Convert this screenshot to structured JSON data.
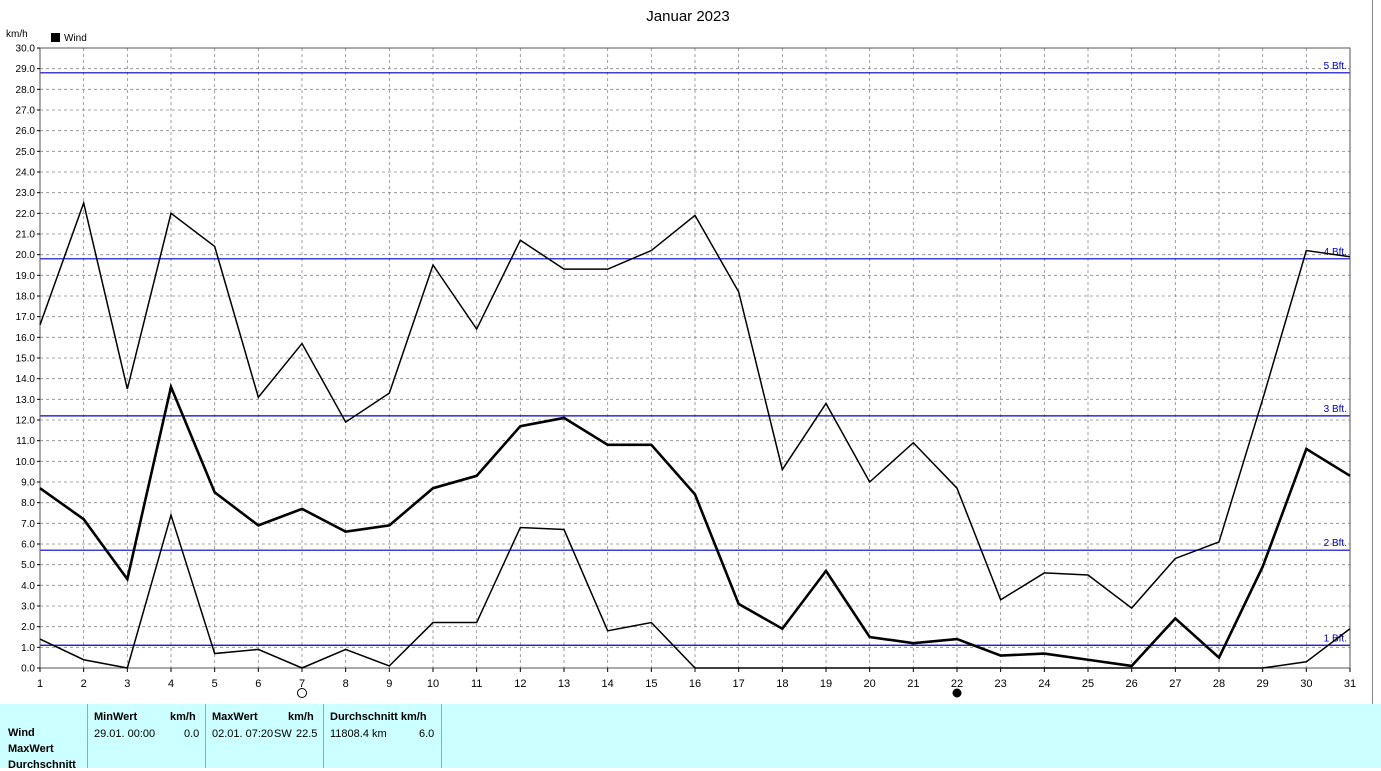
{
  "chart_data": {
    "type": "line",
    "title": "Januar 2023",
    "ylabel": "km/h",
    "xlabel": "",
    "ylim": [
      0,
      30
    ],
    "ytick_step": 1,
    "grid": true,
    "legend": {
      "label": "Wind",
      "color": "#000000",
      "placement": "top-left"
    },
    "x": [
      1,
      2,
      3,
      4,
      5,
      6,
      7,
      8,
      9,
      10,
      11,
      12,
      13,
      14,
      15,
      16,
      17,
      18,
      19,
      20,
      21,
      22,
      23,
      24,
      25,
      26,
      27,
      28,
      29,
      30,
      31
    ],
    "series": [
      {
        "role": "max",
        "values": [
          16.6,
          22.5,
          13.5,
          22.0,
          20.4,
          13.1,
          15.7,
          11.9,
          13.3,
          19.5,
          16.4,
          20.7,
          19.3,
          19.3,
          20.2,
          21.9,
          18.2,
          9.6,
          12.8,
          9.0,
          10.9,
          8.7,
          3.3,
          4.6,
          4.5,
          2.9,
          5.3,
          6.1,
          13.0,
          20.2,
          19.9
        ]
      },
      {
        "role": "avg",
        "values": [
          8.7,
          7.2,
          4.3,
          13.6,
          8.5,
          6.9,
          7.7,
          6.6,
          6.9,
          8.7,
          9.3,
          11.7,
          12.1,
          10.8,
          10.8,
          8.4,
          3.1,
          1.9,
          4.7,
          1.5,
          1.2,
          1.4,
          0.6,
          0.7,
          0.4,
          0.1,
          2.4,
          0.5,
          4.9,
          10.6,
          9.3
        ]
      },
      {
        "role": "min",
        "values": [
          1.4,
          0.4,
          0.0,
          7.4,
          0.7,
          0.9,
          0.0,
          0.9,
          0.1,
          2.2,
          2.2,
          6.8,
          6.7,
          1.8,
          2.2,
          0.0,
          0.0,
          0.0,
          0.0,
          0.0,
          0.0,
          0.0,
          0.0,
          0.0,
          0.0,
          0.0,
          0.0,
          0.0,
          0.0,
          0.3,
          1.9
        ]
      }
    ],
    "beaufort_lines": [
      {
        "label": "1 Bft.",
        "value": 1.1
      },
      {
        "label": "2 Bft.",
        "value": 5.7
      },
      {
        "label": "3 Bft.",
        "value": 12.2
      },
      {
        "label": "4 Bft.",
        "value": 19.8
      },
      {
        "label": "5 Bft.",
        "value": 28.8
      }
    ],
    "moon_markers": [
      {
        "day": 7,
        "phase": "full-moon"
      },
      {
        "day": 22,
        "phase": "new-moon"
      }
    ]
  },
  "stats": {
    "row_labels": [
      "Wind",
      "MaxWert",
      "Durchschnitt"
    ],
    "min": {
      "header": "MinWert",
      "unit": "km/h",
      "date": "29.01.  00:00",
      "value": "0.0"
    },
    "max": {
      "header": "MaxWert",
      "unit": "km/h",
      "date": "02.01.  07:20",
      "dir": "SW",
      "value": "22.5"
    },
    "avg": {
      "header": "Durchschnitt km/h",
      "distance": "11808.4 km",
      "value": "6.0"
    }
  },
  "colors": {
    "grid": "#888888",
    "beaufort": "#0000cc",
    "panel": "#ccffff",
    "line": "#000000"
  }
}
